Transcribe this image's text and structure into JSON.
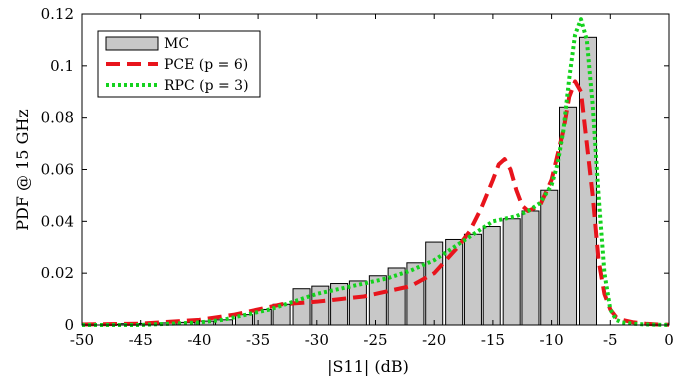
{
  "chart_data": {
    "type": "bar",
    "title": "",
    "xlabel": "|S11| (dB)",
    "ylabel": "PDF @ 15 GHz",
    "xlim": [
      -50,
      0
    ],
    "ylim": [
      0,
      0.12
    ],
    "xticks": [
      -50,
      -45,
      -40,
      -35,
      -30,
      -25,
      -20,
      -15,
      -10,
      -5,
      0
    ],
    "yticks": [
      0,
      0.02,
      0.04,
      0.06,
      0.08,
      0.1,
      0.12
    ],
    "ytick_labels": [
      "0",
      "0.02",
      "0.04",
      "0.06",
      "0.08",
      "0.1",
      "0.12"
    ],
    "legend": [
      "MC",
      "PCE (p = 6)",
      "RPC (p = 3)"
    ],
    "legend_position": "top-left",
    "grid": false,
    "bar_width": 1.45,
    "series": [
      {
        "name": "MC",
        "kind": "bar",
        "color": "#c8c8c8",
        "x": [
          -47.6,
          -46.0,
          -44.4,
          -42.7,
          -41.1,
          -39.5,
          -37.9,
          -36.2,
          -34.6,
          -33.0,
          -31.3,
          -29.7,
          -28.1,
          -26.5,
          -24.8,
          -23.2,
          -21.6,
          -20.0,
          -18.3,
          -16.7,
          -15.1,
          -13.4,
          -11.8,
          -10.2,
          -8.6,
          -6.9
        ],
        "values": [
          0.0003,
          0.0005,
          0.0006,
          0.0008,
          0.001,
          0.0015,
          0.002,
          0.004,
          0.006,
          0.008,
          0.014,
          0.015,
          0.016,
          0.017,
          0.019,
          0.022,
          0.024,
          0.032,
          0.033,
          0.035,
          0.038,
          0.041,
          0.044,
          0.052,
          0.084,
          0.111
        ]
      },
      {
        "name": "PCE (p = 6)",
        "kind": "line",
        "style": "dashed",
        "color": "#e8141c",
        "x": [
          -50,
          -45,
          -40,
          -37,
          -35,
          -33,
          -30,
          -28,
          -26,
          -24,
          -22,
          -20,
          -18,
          -17,
          -16,
          -15,
          -14.5,
          -14,
          -13.5,
          -13,
          -12.5,
          -12,
          -11,
          -10,
          -9,
          -8.5,
          -8,
          -7.5,
          -7,
          -6.5,
          -6,
          -5.5,
          -5,
          -4.5,
          -4,
          -3,
          -2,
          -1,
          0
        ],
        "values": [
          0.0002,
          0.0005,
          0.002,
          0.004,
          0.006,
          0.008,
          0.009,
          0.01,
          0.011,
          0.013,
          0.015,
          0.02,
          0.03,
          0.036,
          0.045,
          0.056,
          0.062,
          0.064,
          0.06,
          0.052,
          0.046,
          0.044,
          0.046,
          0.056,
          0.075,
          0.088,
          0.094,
          0.09,
          0.07,
          0.05,
          0.025,
          0.012,
          0.006,
          0.003,
          0.002,
          0.001,
          0.0005,
          0.0002,
          0.0001
        ]
      },
      {
        "name": "RPC (p = 3)",
        "kind": "line",
        "style": "dotted",
        "color": "#14d21e",
        "x": [
          -50,
          -45,
          -40,
          -38,
          -36,
          -34,
          -32,
          -30,
          -28,
          -26,
          -24,
          -22,
          -20,
          -18,
          -16,
          -15,
          -14,
          -13,
          -12,
          -11,
          -10,
          -9.5,
          -9,
          -8.5,
          -8,
          -7.5,
          -7,
          -6.5,
          -6,
          -5.5,
          -5,
          -4.5,
          -4,
          -3,
          -2,
          -1,
          0
        ],
        "values": [
          0,
          0,
          0.001,
          0.002,
          0.004,
          0.006,
          0.009,
          0.012,
          0.014,
          0.016,
          0.018,
          0.021,
          0.025,
          0.031,
          0.037,
          0.04,
          0.041,
          0.042,
          0.044,
          0.047,
          0.054,
          0.062,
          0.075,
          0.095,
          0.112,
          0.118,
          0.11,
          0.085,
          0.05,
          0.02,
          0.006,
          0.002,
          0.001,
          0.0005,
          0.0002,
          0.0001,
          0
        ]
      }
    ]
  }
}
